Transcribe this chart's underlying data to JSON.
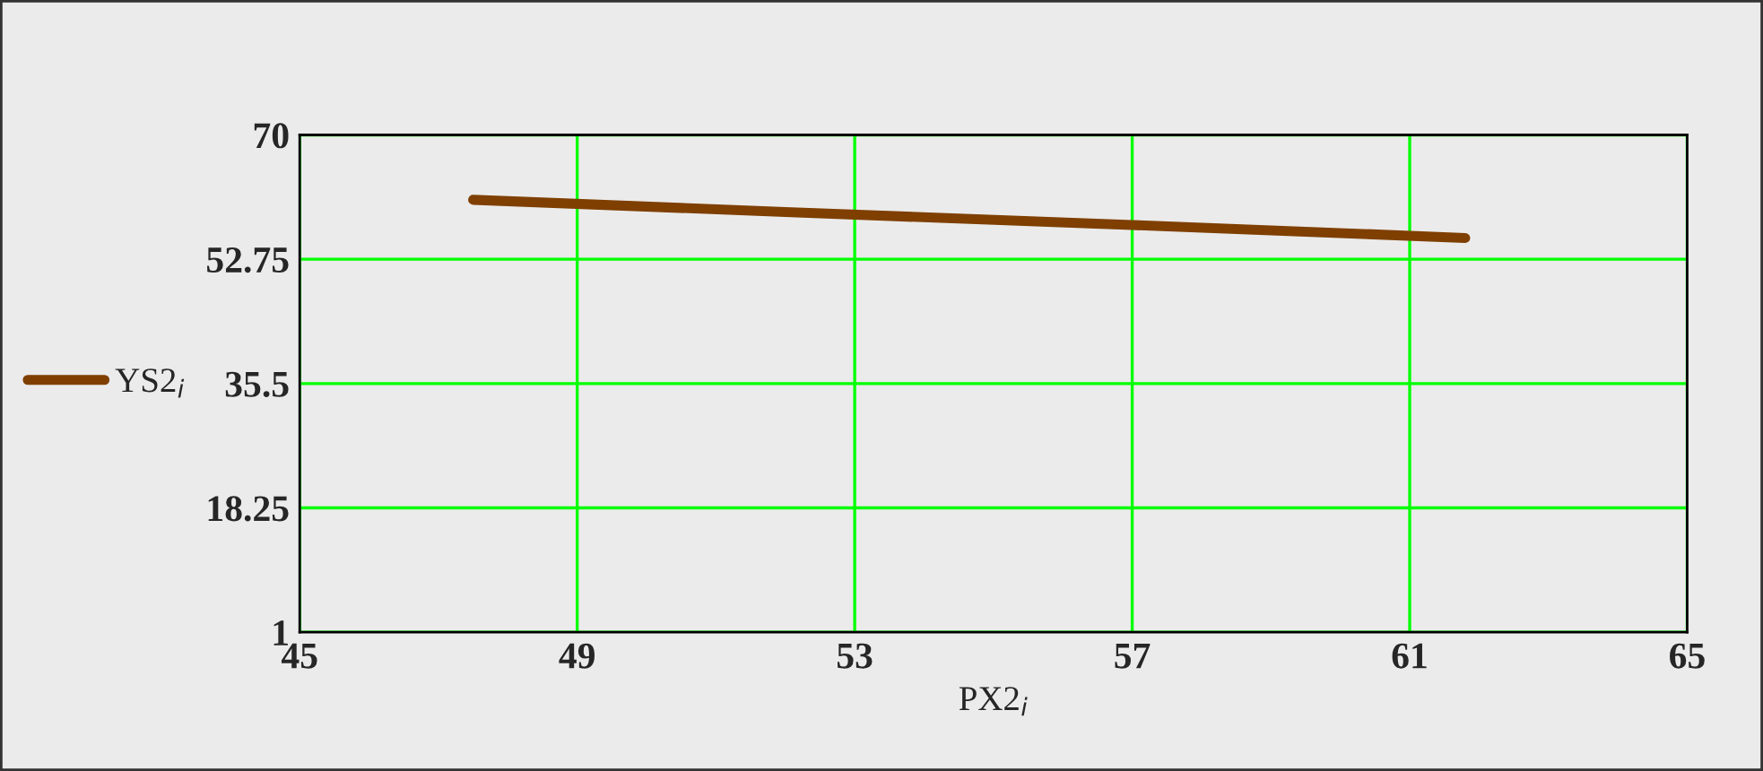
{
  "chart_data": {
    "type": "line",
    "xlabel": "PX2$_{i}$",
    "series": [
      {
        "name": "YS2$_{i}$",
        "color": "#7f3f00",
        "x": [
          47.5,
          52,
          57,
          61.8
        ],
        "values": [
          61.0,
          59.3,
          57.5,
          55.7
        ]
      }
    ],
    "xlim": [
      45,
      65
    ],
    "xticks": [
      45,
      49,
      53,
      57,
      61,
      65
    ],
    "ylim": [
      1,
      70
    ],
    "yticks": [
      1,
      18.25,
      35.5,
      52.75,
      70
    ],
    "grid": true,
    "legend": "left",
    "marker": "none",
    "line_style": "solid"
  }
}
